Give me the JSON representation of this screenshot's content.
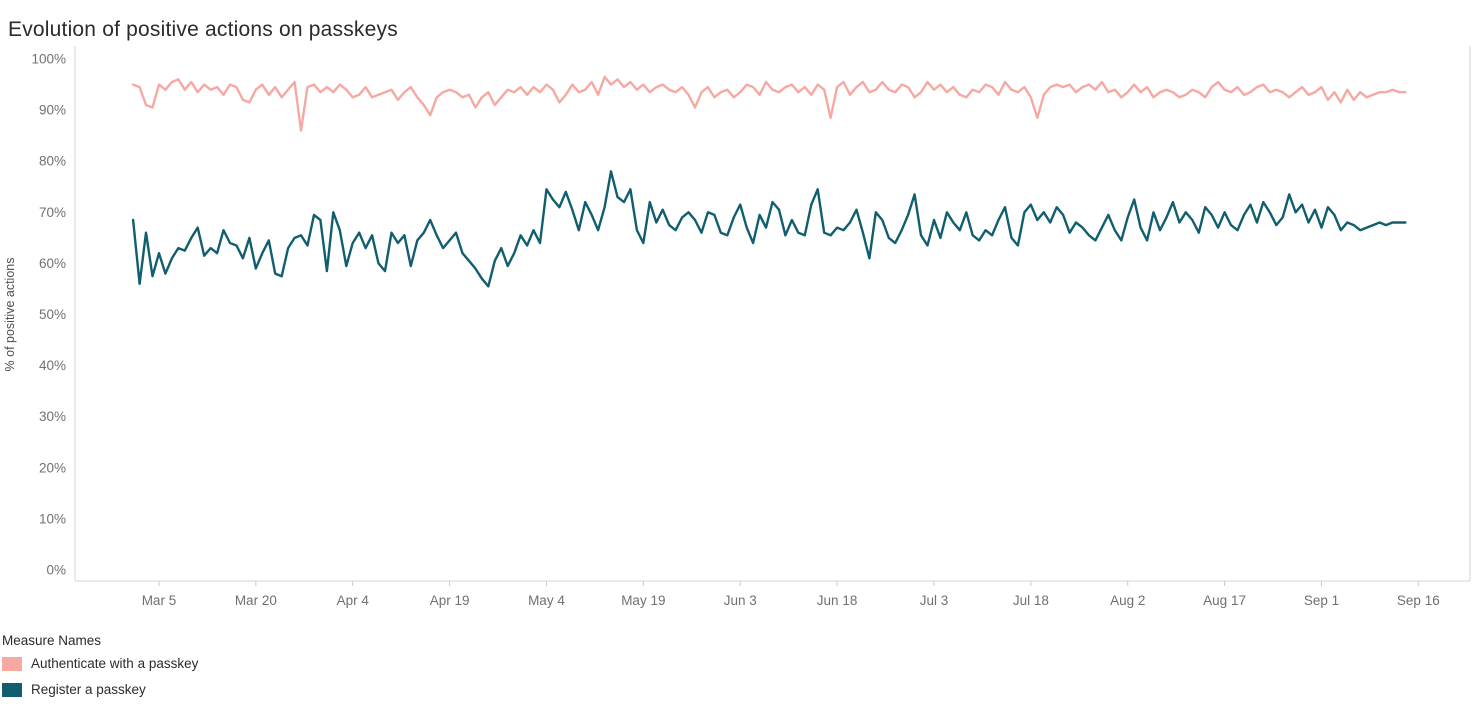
{
  "title": "Evolution of positive actions on passkeys",
  "legend": {
    "title": "Measure Names",
    "items": [
      {
        "label": "Authenticate with a passkey",
        "color": "#F6A9A3"
      },
      {
        "label": "Register a passkey",
        "color": "#115E6E"
      }
    ]
  },
  "chart_data": {
    "type": "line",
    "title": "Evolution of positive actions on passkeys",
    "xlabel": "",
    "ylabel": "% of positive actions",
    "ylim": [
      0,
      100
    ],
    "grid": false,
    "legend_position": "bottom-left",
    "y_tick_labels": [
      "0%",
      "10%",
      "20%",
      "30%",
      "40%",
      "50%",
      "60%",
      "70%",
      "80%",
      "90%",
      "100%"
    ],
    "x_axis": {
      "start": "Mar 1",
      "end": "Sep 14",
      "step": "1 day",
      "tick_labels": [
        "Mar 5",
        "Mar 20",
        "Apr 4",
        "Apr 19",
        "May 4",
        "May 19",
        "Jun 3",
        "Jun 18",
        "Jul 3",
        "Jul 18",
        "Aug 2",
        "Aug 17",
        "Sep 1",
        "Sep 16"
      ],
      "tick_day_index": [
        4,
        19,
        34,
        49,
        64,
        79,
        94,
        109,
        124,
        139,
        154,
        169,
        184,
        199
      ],
      "domain_day_index": [
        -9,
        207
      ]
    },
    "series": [
      {
        "name": "Authenticate with a passkey",
        "color": "#F6A9A3",
        "values": [
          95,
          94.5,
          91,
          90.5,
          95,
          94,
          95.5,
          96,
          94,
          95.5,
          93.5,
          95,
          94,
          94.5,
          93,
          95,
          94.5,
          92,
          91.5,
          94,
          95,
          93,
          94.5,
          92.5,
          94,
          95.5,
          86,
          94.5,
          95,
          93.5,
          94.5,
          93.5,
          95,
          94,
          92.5,
          93,
          94.5,
          92.5,
          93,
          93.5,
          94,
          92,
          93.5,
          94.5,
          92.5,
          91,
          89,
          92.5,
          93.5,
          94,
          93.5,
          92.5,
          93,
          90.5,
          92.5,
          93.5,
          91,
          92.5,
          94,
          93.5,
          94.5,
          93,
          94.5,
          93.5,
          95,
          94,
          91.5,
          93,
          95,
          93.5,
          94,
          95.5,
          93,
          96.5,
          95,
          96,
          94.5,
          95.5,
          94,
          95,
          93.5,
          94.5,
          95,
          94,
          93.5,
          94.5,
          93,
          90.5,
          93.5,
          94.5,
          92.5,
          93.5,
          94,
          92.5,
          93.5,
          95,
          94.5,
          93,
          95.5,
          94,
          93.5,
          94.5,
          95,
          93.5,
          94.5,
          93,
          95,
          94,
          88.5,
          94.5,
          95.5,
          93,
          94.5,
          95.5,
          93.5,
          94,
          95.5,
          94,
          93.5,
          95,
          94.5,
          92.5,
          93.5,
          95.5,
          94,
          95,
          93.5,
          94.5,
          93,
          92.5,
          94,
          93.5,
          95,
          94.5,
          93,
          95.5,
          94,
          93.5,
          94.5,
          92.5,
          88.5,
          93,
          94.5,
          95,
          94.5,
          95,
          93.5,
          94.5,
          95,
          94,
          95.5,
          93.5,
          94,
          92.5,
          93.5,
          95,
          93.5,
          94.5,
          92.5,
          93.5,
          94,
          93.5,
          92.5,
          93,
          94,
          93.5,
          92.5,
          94.5,
          95.5,
          94,
          93.5,
          94.5,
          93,
          93.5,
          94.5,
          95,
          93.5,
          94,
          93.5,
          92.5,
          93.5,
          94.5,
          93,
          93.5,
          94.5,
          92,
          93.5,
          91.5,
          94,
          92,
          93.5,
          92.5,
          93,
          93.5,
          93.5,
          94,
          93.5,
          93.5
        ]
      },
      {
        "name": "Register a passkey",
        "color": "#115E6E",
        "values": [
          68.5,
          56,
          66,
          57.5,
          62,
          58,
          61,
          63,
          62.5,
          65,
          67,
          61.5,
          63,
          62,
          66.5,
          64,
          63.5,
          61,
          65,
          59,
          62,
          64.5,
          58,
          57.5,
          63,
          65,
          65.5,
          63.5,
          69.5,
          68.5,
          58.5,
          70,
          66.5,
          59.5,
          64,
          66,
          63,
          65.5,
          60,
          58.5,
          66,
          64,
          65.5,
          59.5,
          64.5,
          66,
          68.5,
          65.5,
          63,
          64.5,
          66,
          62,
          60.5,
          59,
          57,
          55.5,
          60.5,
          63,
          59.5,
          62,
          65.5,
          63.5,
          66.5,
          64,
          74.5,
          72.5,
          71,
          74,
          70.5,
          66.5,
          72,
          69.5,
          66.5,
          71,
          78,
          73,
          72,
          74.5,
          66.5,
          64,
          72,
          68,
          70.5,
          67.5,
          66.5,
          69,
          70,
          68.5,
          66,
          70,
          69.5,
          66,
          65.5,
          69,
          71.5,
          67,
          64,
          69.5,
          67,
          72,
          70.5,
          65.5,
          68.5,
          66,
          65.5,
          71.5,
          74.5,
          66,
          65.5,
          67,
          66.5,
          68,
          70.5,
          66,
          61,
          70,
          68.5,
          65,
          64,
          66.5,
          69.5,
          73.5,
          65.5,
          63.5,
          68.5,
          65,
          70,
          68,
          66.5,
          70,
          65.5,
          64.5,
          66.5,
          65.5,
          68.5,
          71,
          65,
          63.5,
          70,
          71.5,
          68.5,
          70,
          68,
          71,
          69.5,
          66,
          68,
          67,
          65.5,
          64.5,
          67,
          69.5,
          66.5,
          64.5,
          69,
          72.5,
          67,
          64.5,
          70,
          66.5,
          69,
          72,
          68,
          70,
          68.5,
          66,
          71,
          69.5,
          67,
          70,
          67.5,
          66.5,
          69.5,
          71.5,
          68,
          72,
          70,
          67.5,
          69,
          73.5,
          70,
          71.5,
          68,
          70.5,
          67,
          71,
          69.5,
          66.5,
          68,
          67.5,
          66.5,
          67,
          67.5,
          68,
          67.5,
          68,
          68,
          68
        ]
      }
    ]
  }
}
